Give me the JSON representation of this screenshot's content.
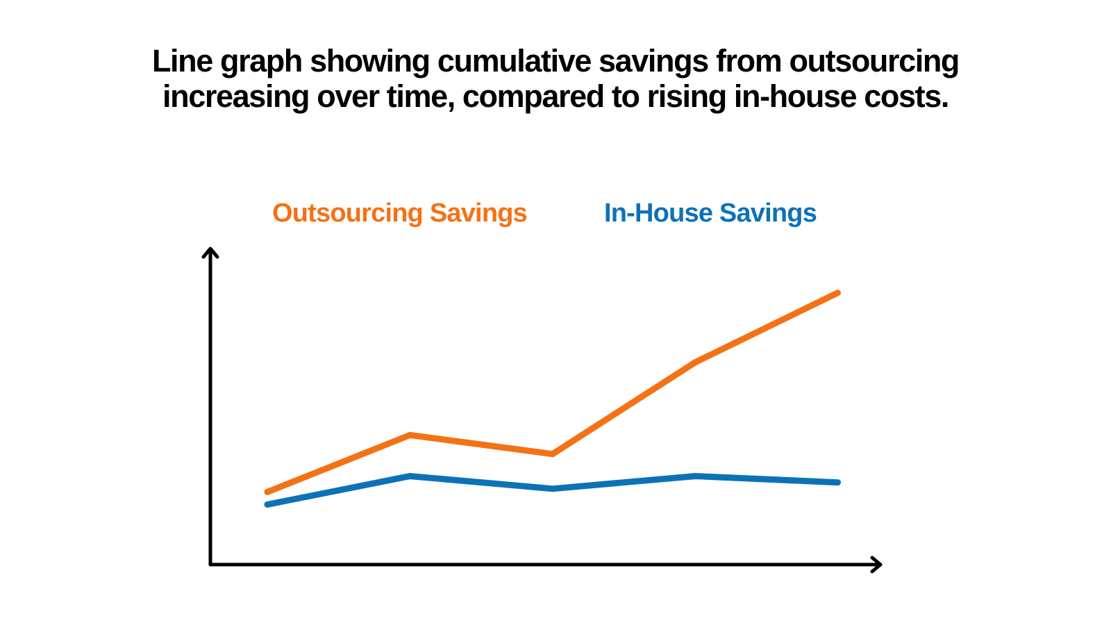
{
  "chart_data": {
    "type": "line",
    "title": "Line graph showing cumulative savings from outsourcing increasing over time, compared to rising in-house costs.",
    "title_lines": [
      "Line graph showing cumulative savings from outsourcing",
      "increasing over time, compared to rising in-house costs."
    ],
    "x": [
      1,
      2,
      3,
      4,
      5
    ],
    "xlabel": "",
    "ylabel": "",
    "xlim": [
      0.6,
      5.3
    ],
    "ylim": [
      0,
      10
    ],
    "grid": false,
    "legend_position": "top",
    "series": [
      {
        "name": "Outsourcing Savings",
        "color": "#F47216",
        "values": [
          2.3,
          4.1,
          3.5,
          6.4,
          8.6
        ]
      },
      {
        "name": "In-House Savings",
        "color": "#0C72B8",
        "values": [
          1.9,
          2.8,
          2.4,
          2.8,
          2.6
        ]
      }
    ]
  }
}
